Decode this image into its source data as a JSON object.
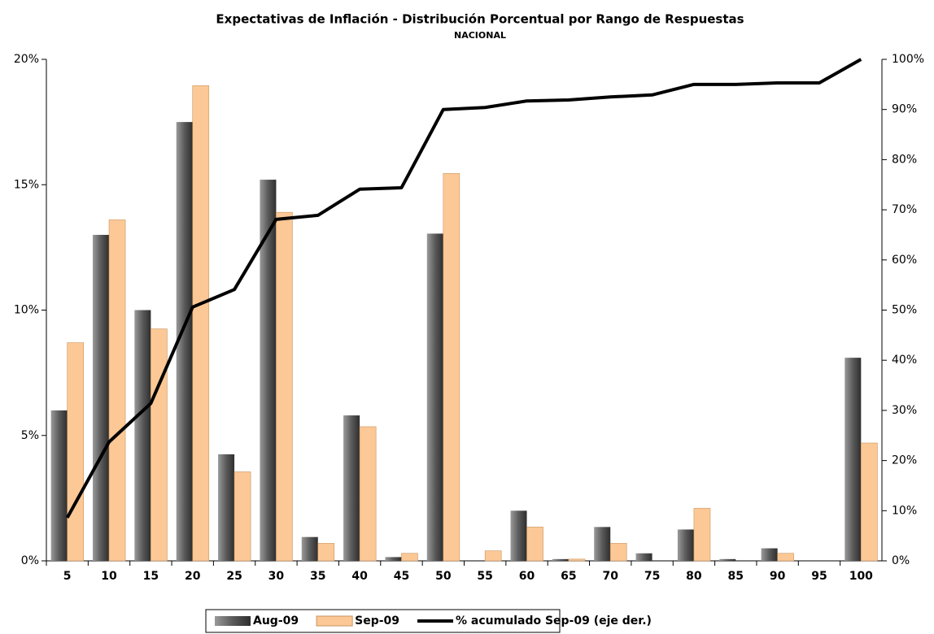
{
  "chart_data": {
    "type": "bar-line",
    "title": "Expectativas de Inflación - Distribución Porcentual por Rango de Respuestas",
    "subtitle": "NACIONAL",
    "categories": [
      "5",
      "10",
      "15",
      "20",
      "25",
      "30",
      "35",
      "40",
      "45",
      "50",
      "55",
      "60",
      "65",
      "70",
      "75",
      "80",
      "85",
      "90",
      "95",
      "100"
    ],
    "series": [
      {
        "name": "Aug-09",
        "type": "bar",
        "color": "#5a5a5a",
        "values": [
          6.0,
          13.0,
          10.0,
          17.5,
          4.25,
          15.2,
          0.95,
          5.8,
          0.15,
          13.05,
          0,
          2.0,
          0.07,
          1.35,
          0.3,
          1.25,
          0.07,
          0.5,
          0,
          8.1
        ]
      },
      {
        "name": "Sep-09",
        "type": "bar",
        "color": "#fbc896",
        "values": [
          8.7,
          13.6,
          9.25,
          18.95,
          3.55,
          13.9,
          0.7,
          5.35,
          0.3,
          15.45,
          0.4,
          1.35,
          0.07,
          0.7,
          0,
          2.1,
          0,
          0.3,
          0,
          4.7
        ]
      },
      {
        "name": "% acumulado Sep-09 (eje der.)",
        "type": "line",
        "axis": "y2",
        "color": "#000000",
        "values": [
          8.6,
          23.7,
          31.4,
          50.6,
          54.1,
          68.1,
          68.9,
          74.1,
          74.4,
          90.0,
          90.4,
          91.7,
          91.9,
          92.5,
          92.9,
          95.0,
          95.0,
          95.3,
          95.3,
          100
        ]
      }
    ],
    "ylim": [
      0,
      20
    ],
    "yticks": [
      {
        "value": 0,
        "label": "0%"
      },
      {
        "value": 5,
        "label": "5%"
      },
      {
        "value": 10,
        "label": "10%"
      },
      {
        "value": 15,
        "label": "15%"
      },
      {
        "value": 20,
        "label": "20%"
      }
    ],
    "y2lim": [
      0,
      100
    ],
    "y2ticks": [
      {
        "value": 0,
        "label": "0%"
      },
      {
        "value": 10,
        "label": "10%"
      },
      {
        "value": 20,
        "label": "20%"
      },
      {
        "value": 30,
        "label": "30%"
      },
      {
        "value": 40,
        "label": "40%"
      },
      {
        "value": 50,
        "label": "50%"
      },
      {
        "value": 60,
        "label": "60%"
      },
      {
        "value": 70,
        "label": "70%"
      },
      {
        "value": 80,
        "label": "80%"
      },
      {
        "value": 90,
        "label": "90%"
      },
      {
        "value": 100,
        "label": "100%"
      }
    ],
    "legend": "bottom"
  }
}
